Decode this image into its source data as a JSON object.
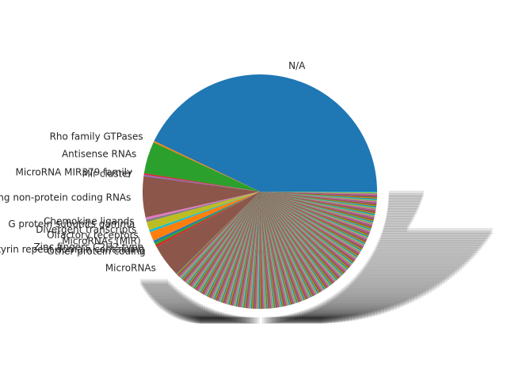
{
  "chart_data": {
    "type": "pie",
    "title": "",
    "legend": "none",
    "start_angle_deg": 0,
    "direction": "counterclockwise",
    "note_on_tail": "hundreds of further small categories have overlapping unreadable labels",
    "slices": [
      {
        "label": "N/A",
        "value": 41.0,
        "color": "#1f77b4"
      },
      {
        "label": "Rho family GTPases",
        "value": 0.2,
        "color": "#ff7f0e"
      },
      {
        "label": "Antisense RNAs",
        "value": 4.2,
        "color": "#2ca02c"
      },
      {
        "label": "MicroRNA MIR379 family",
        "value": 0.2,
        "color": "#d62728"
      },
      {
        "label": "Mir cluster",
        "value": 0.2,
        "color": "#9467bd"
      },
      {
        "label": "Long non-protein coding RNAs",
        "value": 5.4,
        "color": "#8c564b"
      },
      {
        "label": "Chemokine ligands",
        "value": 0.3,
        "color": "#e377c2"
      },
      {
        "label": "G protein subunits gamma",
        "value": 0.3,
        "color": "#7f7f7f"
      },
      {
        "label": "Divergent transcripts",
        "value": 1.1,
        "color": "#bcbd22"
      },
      {
        "label": "Olfactory receptors",
        "value": 0.3,
        "color": "#17becf"
      },
      {
        "label": "MicroRNAs (MIR)",
        "value": 1.2,
        "color": "#ff7f0e"
      },
      {
        "label": "Zinc fingers C2H2-type",
        "value": 0.3,
        "color": "#1f77b4"
      },
      {
        "label": "Ankyrin repeat domain containing",
        "value": 0.3,
        "color": "#2ca02c"
      },
      {
        "label": "Other protein coding",
        "value": 0.3,
        "color": "#d62728"
      },
      {
        "label": "MicroRNAs",
        "value": 4.3,
        "color": "#8c564b"
      }
    ],
    "tail_palette": [
      "#1f77b4",
      "#ff7f0e",
      "#2ca02c",
      "#d62728",
      "#9467bd",
      "#8c564b",
      "#e377c2",
      "#7f7f7f",
      "#bcbd22",
      "#17becf"
    ],
    "tail_count": 360,
    "tail_value_each": 0.1
  }
}
